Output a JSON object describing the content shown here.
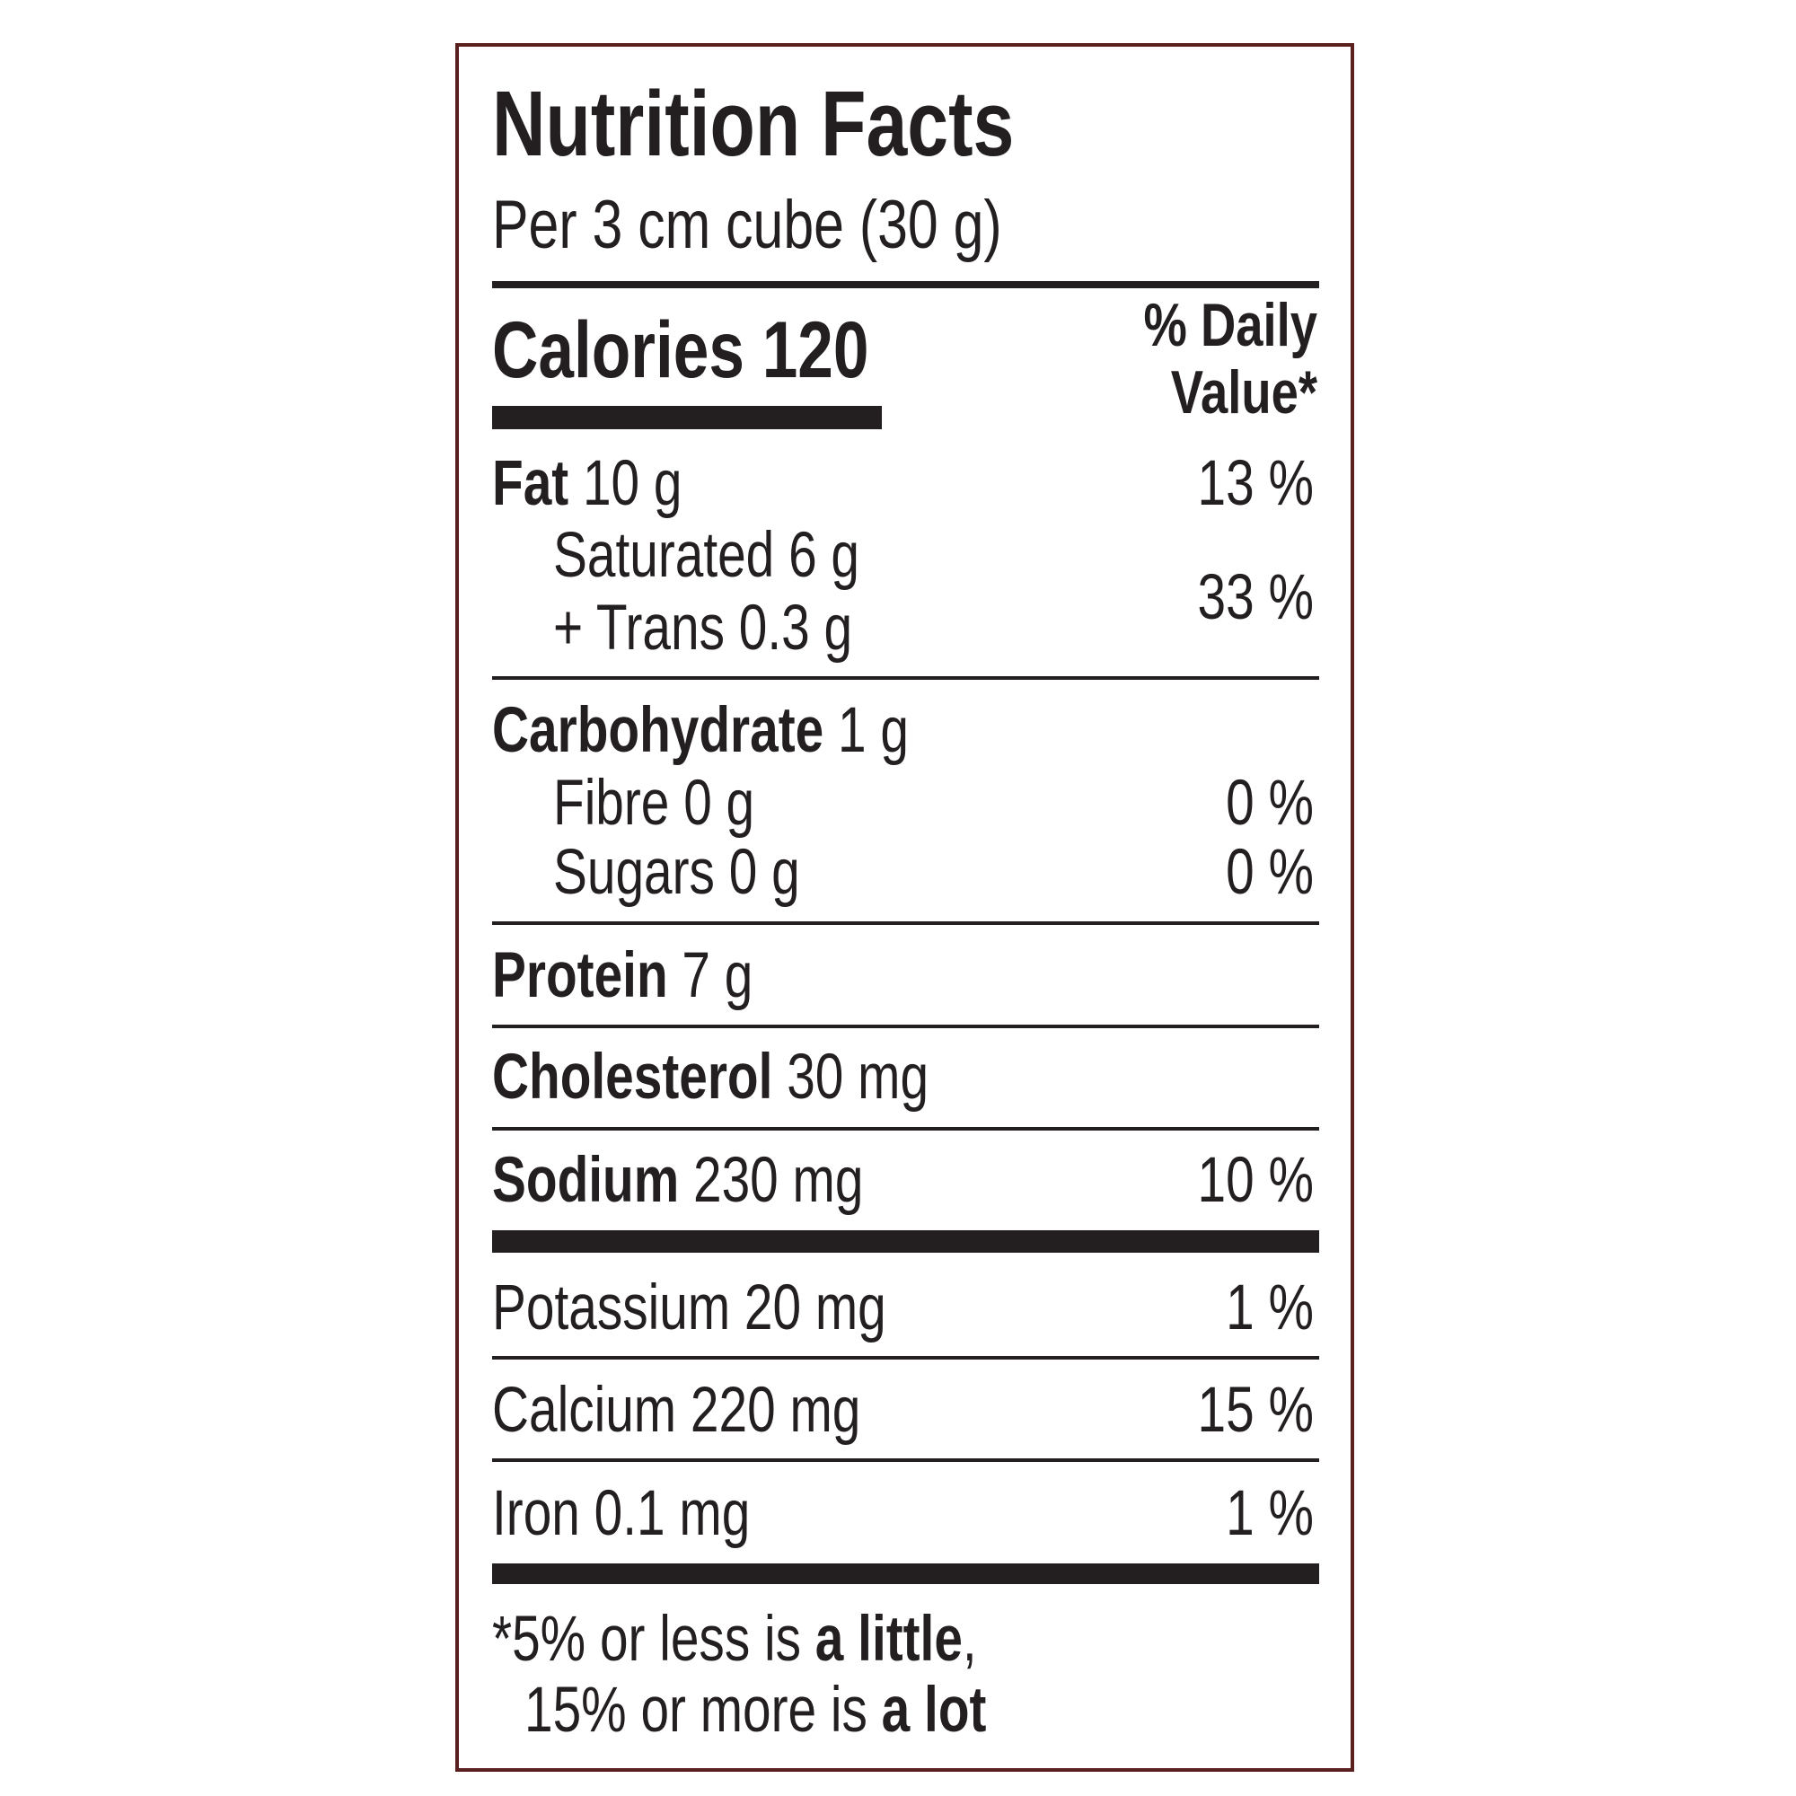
{
  "title": "Nutrition Facts",
  "serving": "Per 3 cm cube (30 g)",
  "calories": {
    "label": "Calories",
    "value": "120"
  },
  "daily_value_header": [
    "% Daily",
    "Value*"
  ],
  "rows": [
    {
      "label": "Fat",
      "amount": "10 g",
      "dv": "13 %"
    },
    {
      "label": "Saturated",
      "amount": "6 g"
    },
    {
      "label": "+ Trans",
      "amount": "0.3 g"
    },
    {
      "label": "Carbohydrate",
      "amount": "1 g"
    },
    {
      "label": "Fibre",
      "amount": "0 g",
      "dv": "0 %"
    },
    {
      "label": "Sugars",
      "amount": "0 g",
      "dv": "0 %"
    },
    {
      "label": "Protein",
      "amount": "7 g"
    },
    {
      "label": "Cholesterol",
      "amount": "30 mg"
    },
    {
      "label": "Sodium",
      "amount": "230 mg",
      "dv": "10 %"
    },
    {
      "label": "Potassium",
      "amount": "20 mg",
      "dv": "1 %"
    },
    {
      "label": "Calcium",
      "amount": "220 mg",
      "dv": "15 %"
    },
    {
      "label": "Iron",
      "amount": "0.1 mg",
      "dv": "1 %"
    }
  ],
  "saturated_trans_dv": "33 %",
  "footnote": {
    "line1": {
      "text": "*5% or less is ",
      "bold": "a little",
      "end": ","
    },
    "line2": {
      "text": "15% or more is ",
      "bold": "a lot"
    }
  }
}
